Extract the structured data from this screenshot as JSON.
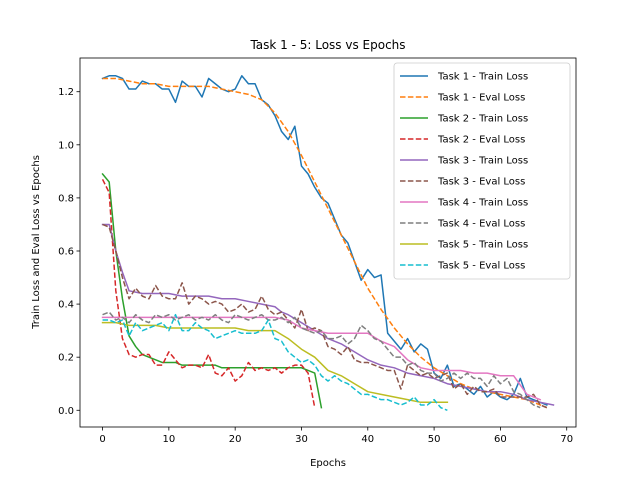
{
  "chart_data": {
    "type": "line",
    "title": "Task 1 - 5: Loss vs Epochs",
    "xlabel": "Epochs",
    "ylabel": "Train Loss and Eval Loss vs Epochs",
    "xlim": [
      -3.4,
      71.4
    ],
    "ylim": [
      -0.063,
      1.327
    ],
    "xticks": [
      "0",
      "10",
      "20",
      "30",
      "40",
      "50",
      "60",
      "70"
    ],
    "yticks": [
      "0.0",
      "0.2",
      "0.4",
      "0.6",
      "0.8",
      "1.0",
      "1.2"
    ],
    "grid": false,
    "legend_position": "top-right",
    "series": [
      {
        "name": "Task 1 - Train Loss",
        "color": "#1f77b4",
        "dash": "solid",
        "x": [
          0,
          1,
          2,
          3,
          4,
          5,
          6,
          7,
          8,
          9,
          10,
          11,
          12,
          13,
          14,
          15,
          16,
          17,
          18,
          19,
          20,
          21,
          22,
          23,
          24,
          25,
          26,
          27,
          28,
          29,
          30,
          31,
          32,
          33,
          34,
          35,
          36,
          37,
          38,
          39,
          40,
          41,
          42,
          43,
          44,
          45,
          46,
          47,
          48,
          49,
          50,
          51,
          52,
          53,
          54,
          55,
          56,
          57,
          58,
          59,
          60,
          61,
          62,
          63,
          64,
          65,
          66,
          67
        ],
        "y": [
          1.25,
          1.26,
          1.26,
          1.25,
          1.21,
          1.21,
          1.24,
          1.23,
          1.23,
          1.21,
          1.21,
          1.16,
          1.24,
          1.22,
          1.22,
          1.18,
          1.25,
          1.23,
          1.21,
          1.2,
          1.21,
          1.26,
          1.23,
          1.23,
          1.17,
          1.15,
          1.11,
          1.05,
          1.02,
          1.07,
          0.92,
          0.89,
          0.84,
          0.8,
          0.78,
          0.72,
          0.66,
          0.63,
          0.56,
          0.49,
          0.53,
          0.5,
          0.51,
          0.29,
          0.26,
          0.23,
          0.27,
          0.22,
          0.25,
          0.23,
          0.14,
          0.12,
          0.17,
          0.09,
          0.1,
          0.08,
          0.06,
          0.09,
          0.05,
          0.07,
          0.05,
          0.04,
          0.06,
          0.12,
          0.05,
          0.04,
          0.03,
          0.02
        ]
      },
      {
        "name": "Task 1 - Eval Loss",
        "color": "#ff7f0e",
        "dash": "dashed",
        "x": [
          0,
          2,
          4,
          6,
          8,
          10,
          12,
          14,
          16,
          18,
          20,
          22,
          24,
          26,
          28,
          30,
          32,
          34,
          36,
          38,
          40,
          42,
          44,
          46,
          48,
          50,
          52,
          54,
          56,
          58,
          60,
          62,
          64,
          66,
          67
        ],
        "y": [
          1.25,
          1.25,
          1.24,
          1.23,
          1.23,
          1.22,
          1.22,
          1.22,
          1.22,
          1.21,
          1.2,
          1.19,
          1.17,
          1.12,
          1.05,
          0.96,
          0.86,
          0.76,
          0.66,
          0.56,
          0.46,
          0.38,
          0.31,
          0.25,
          0.2,
          0.16,
          0.13,
          0.1,
          0.08,
          0.07,
          0.06,
          0.05,
          0.04,
          0.02,
          0.01
        ]
      },
      {
        "name": "Task 2 - Train Loss",
        "color": "#2ca02c",
        "dash": "solid",
        "x": [
          0,
          1,
          2,
          3,
          4,
          5,
          6,
          7,
          8,
          9,
          10,
          11,
          12,
          13,
          14,
          15,
          16,
          17,
          18,
          19,
          20,
          21,
          22,
          23,
          24,
          25,
          26,
          27,
          28,
          29,
          30,
          31,
          32,
          33
        ],
        "y": [
          0.89,
          0.86,
          0.6,
          0.42,
          0.28,
          0.24,
          0.21,
          0.2,
          0.19,
          0.18,
          0.18,
          0.18,
          0.17,
          0.17,
          0.17,
          0.17,
          0.17,
          0.17,
          0.16,
          0.16,
          0.16,
          0.16,
          0.16,
          0.16,
          0.16,
          0.16,
          0.16,
          0.16,
          0.16,
          0.16,
          0.16,
          0.15,
          0.14,
          0.01
        ]
      },
      {
        "name": "Task 2 - Eval Loss",
        "color": "#d62728",
        "dash": "dashed",
        "x": [
          0,
          1,
          2,
          3,
          4,
          5,
          6,
          7,
          8,
          9,
          10,
          11,
          12,
          13,
          14,
          15,
          16,
          17,
          18,
          19,
          20,
          21,
          22,
          23,
          24,
          25,
          26,
          27,
          28,
          29,
          30,
          31,
          32
        ],
        "y": [
          0.87,
          0.82,
          0.45,
          0.27,
          0.21,
          0.2,
          0.21,
          0.21,
          0.17,
          0.17,
          0.22,
          0.19,
          0.16,
          0.17,
          0.17,
          0.16,
          0.21,
          0.14,
          0.13,
          0.16,
          0.11,
          0.13,
          0.18,
          0.15,
          0.16,
          0.15,
          0.16,
          0.14,
          0.16,
          0.17,
          0.17,
          0.14,
          0.01
        ]
      },
      {
        "name": "Task 3 - Train Loss",
        "color": "#9467bd",
        "dash": "solid",
        "x": [
          0,
          1,
          2,
          3,
          4,
          6,
          8,
          10,
          12,
          14,
          16,
          18,
          20,
          22,
          24,
          26,
          27,
          28,
          30,
          32,
          34,
          36,
          38,
          40,
          42,
          44,
          46,
          48,
          50,
          52,
          54,
          56,
          58,
          60,
          62,
          64,
          66,
          68
        ],
        "y": [
          0.7,
          0.7,
          0.6,
          0.52,
          0.45,
          0.44,
          0.44,
          0.44,
          0.43,
          0.43,
          0.43,
          0.42,
          0.42,
          0.41,
          0.4,
          0.39,
          0.37,
          0.36,
          0.33,
          0.3,
          0.27,
          0.25,
          0.22,
          0.19,
          0.17,
          0.16,
          0.14,
          0.13,
          0.12,
          0.1,
          0.09,
          0.08,
          0.07,
          0.07,
          0.06,
          0.04,
          0.03,
          0.02
        ]
      },
      {
        "name": "Task 3 - Eval Loss",
        "color": "#8c564b",
        "dash": "dashed",
        "x": [
          0,
          1,
          2,
          3,
          4,
          5,
          6,
          7,
          8,
          9,
          10,
          11,
          12,
          13,
          14,
          15,
          16,
          17,
          18,
          19,
          20,
          21,
          22,
          23,
          24,
          25,
          26,
          27,
          28,
          29,
          30,
          31,
          32,
          33,
          34,
          35,
          36,
          37,
          38,
          39,
          40,
          41,
          42,
          43,
          44,
          45,
          46,
          47,
          48,
          49,
          50,
          51,
          52,
          53,
          54,
          55,
          56,
          57,
          58,
          59,
          60,
          61,
          62,
          63,
          64,
          65,
          66,
          67
        ],
        "y": [
          0.7,
          0.69,
          0.6,
          0.5,
          0.42,
          0.46,
          0.43,
          0.42,
          0.47,
          0.43,
          0.42,
          0.42,
          0.48,
          0.4,
          0.43,
          0.42,
          0.4,
          0.41,
          0.4,
          0.37,
          0.38,
          0.4,
          0.37,
          0.38,
          0.43,
          0.38,
          0.36,
          0.37,
          0.34,
          0.31,
          0.38,
          0.3,
          0.31,
          0.3,
          0.24,
          0.23,
          0.21,
          0.24,
          0.19,
          0.18,
          0.18,
          0.17,
          0.16,
          0.15,
          0.15,
          0.08,
          0.17,
          0.15,
          0.13,
          0.14,
          0.12,
          0.13,
          0.14,
          0.08,
          0.1,
          0.06,
          0.09,
          0.07,
          0.07,
          0.08,
          0.05,
          0.05,
          0.05,
          0.05,
          0.05,
          0.06,
          0.02,
          0.01
        ]
      },
      {
        "name": "Task 4 - Train Loss",
        "color": "#e377c2",
        "dash": "solid",
        "x": [
          0,
          2,
          4,
          6,
          8,
          10,
          12,
          14,
          16,
          18,
          20,
          22,
          24,
          26,
          28,
          30,
          32,
          34,
          36,
          38,
          40,
          42,
          44,
          46,
          48,
          50,
          52,
          54,
          56,
          58,
          60,
          62,
          64,
          66
        ],
        "y": [
          0.35,
          0.35,
          0.35,
          0.35,
          0.35,
          0.35,
          0.35,
          0.35,
          0.35,
          0.35,
          0.35,
          0.35,
          0.35,
          0.35,
          0.34,
          0.31,
          0.3,
          0.29,
          0.29,
          0.29,
          0.29,
          0.26,
          0.24,
          0.19,
          0.16,
          0.15,
          0.15,
          0.15,
          0.14,
          0.14,
          0.13,
          0.13,
          0.06,
          0.04
        ]
      },
      {
        "name": "Task 4 - Eval Loss",
        "color": "#7f7f7f",
        "dash": "dashed",
        "x": [
          0,
          1,
          2,
          3,
          4,
          5,
          6,
          7,
          8,
          9,
          10,
          11,
          12,
          13,
          14,
          15,
          16,
          17,
          18,
          19,
          20,
          21,
          22,
          23,
          24,
          25,
          26,
          27,
          28,
          29,
          30,
          31,
          32,
          33,
          34,
          35,
          36,
          37,
          38,
          39,
          40,
          41,
          42,
          43,
          44,
          45,
          46,
          47,
          48,
          49,
          50,
          51,
          52,
          53,
          54,
          55,
          56,
          57,
          58,
          59,
          60,
          61,
          62,
          63,
          64,
          65,
          66
        ],
        "y": [
          0.36,
          0.37,
          0.34,
          0.35,
          0.33,
          0.36,
          0.34,
          0.33,
          0.36,
          0.35,
          0.36,
          0.34,
          0.35,
          0.36,
          0.34,
          0.35,
          0.34,
          0.36,
          0.34,
          0.33,
          0.36,
          0.35,
          0.34,
          0.35,
          0.36,
          0.34,
          0.34,
          0.35,
          0.33,
          0.35,
          0.31,
          0.3,
          0.29,
          0.3,
          0.27,
          0.27,
          0.28,
          0.25,
          0.27,
          0.32,
          0.3,
          0.27,
          0.26,
          0.23,
          0.2,
          0.2,
          0.17,
          0.18,
          0.15,
          0.14,
          0.14,
          0.11,
          0.12,
          0.14,
          0.12,
          0.14,
          0.12,
          0.12,
          0.09,
          0.13,
          0.1,
          0.12,
          0.07,
          0.06,
          0.04,
          0.02,
          0.01
        ]
      },
      {
        "name": "Task 5 - Train Loss",
        "color": "#bcbd22",
        "dash": "solid",
        "x": [
          0,
          2,
          4,
          6,
          8,
          10,
          12,
          14,
          16,
          18,
          20,
          22,
          24,
          26,
          28,
          30,
          32,
          34,
          36,
          38,
          40,
          42,
          44,
          46,
          48,
          50,
          52
        ],
        "y": [
          0.33,
          0.33,
          0.32,
          0.32,
          0.32,
          0.31,
          0.31,
          0.31,
          0.31,
          0.31,
          0.31,
          0.3,
          0.3,
          0.3,
          0.27,
          0.23,
          0.2,
          0.15,
          0.13,
          0.1,
          0.07,
          0.06,
          0.05,
          0.04,
          0.03,
          0.03,
          0.03
        ]
      },
      {
        "name": "Task 5 - Eval Loss",
        "color": "#17becf",
        "dash": "dashed",
        "x": [
          0,
          1,
          2,
          3,
          4,
          5,
          6,
          7,
          8,
          9,
          10,
          11,
          12,
          13,
          14,
          15,
          16,
          17,
          18,
          19,
          20,
          21,
          22,
          23,
          24,
          25,
          26,
          27,
          28,
          29,
          30,
          31,
          32,
          33,
          34,
          35,
          36,
          37,
          38,
          39,
          40,
          41,
          42,
          43,
          44,
          45,
          46,
          47,
          48,
          49,
          50,
          51,
          52
        ],
        "y": [
          0.34,
          0.34,
          0.33,
          0.34,
          0.28,
          0.33,
          0.3,
          0.31,
          0.32,
          0.33,
          0.3,
          0.36,
          0.3,
          0.3,
          0.33,
          0.31,
          0.3,
          0.27,
          0.28,
          0.29,
          0.3,
          0.29,
          0.29,
          0.29,
          0.3,
          0.34,
          0.27,
          0.26,
          0.22,
          0.2,
          0.18,
          0.19,
          0.17,
          0.13,
          0.11,
          0.13,
          0.11,
          0.1,
          0.08,
          0.06,
          0.06,
          0.05,
          0.04,
          0.04,
          0.03,
          0.02,
          0.03,
          0.05,
          0.02,
          0.02,
          0.04,
          0.01,
          0.0
        ]
      }
    ]
  }
}
